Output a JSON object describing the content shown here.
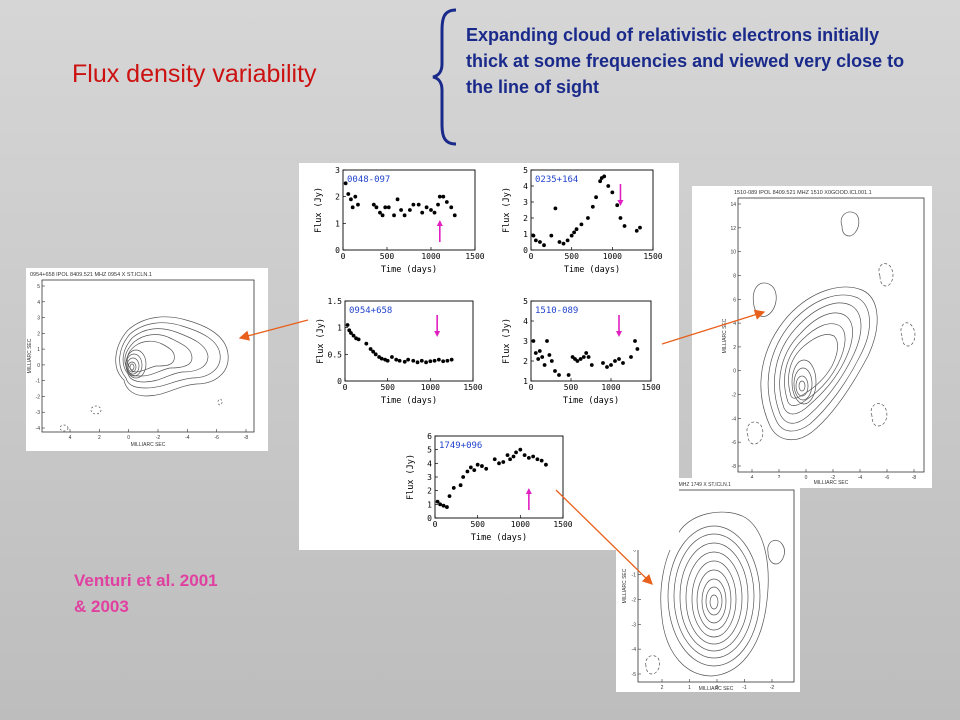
{
  "slide": {
    "title": "Flux density variability",
    "note": "Expanding cloud of relativistic electrons initially thick at some frequencies and viewed very close to the line of sight",
    "reference_line1": "Venturi et al. 2001",
    "reference_line2": "& 2003"
  },
  "colors": {
    "title": "#cc1111",
    "note": "#1a2a8a",
    "reference": "#e040a0",
    "arrow": "#e8601c",
    "marker": "#e020c0",
    "source_label": "#2244cc"
  },
  "maps": {
    "left": {
      "header": "0954+658 IPOL 8409.521 MHZ 0954 X ST.ICLN.1",
      "xlabel": "MILLIARC SEC",
      "ylabel": "MILLIARC SEC",
      "x_ticks": [
        "4",
        "2",
        "0",
        "-2",
        "-4",
        "-6",
        "-8"
      ],
      "y_ticks": [
        "5",
        "4",
        "3",
        "2",
        "1",
        "0",
        "-1",
        "-2",
        "-3",
        "-4"
      ]
    },
    "right": {
      "header": "1510-089 IPOL 8409.521 MHZ 1510 X0GOOD.ICL001.1",
      "xlabel": "MILLIARC SEC",
      "ylabel": "MILLIARC SEC",
      "x_ticks": [
        "4",
        "2",
        "0",
        "-2",
        "-4",
        "-6",
        "-8"
      ],
      "y_ticks": [
        "14",
        "12",
        "10",
        "8",
        "6",
        "4",
        "2",
        "0",
        "-2",
        "-4",
        "-6",
        "-8"
      ]
    },
    "bottom": {
      "header": "1749+096 IPOL 8409.521 MHZ 1749 X ST.ICLN.1",
      "xlabel": "MILLIARC SEC",
      "ylabel": "MILLIARC SEC",
      "x_ticks": [
        "2",
        "1",
        "0",
        "-1",
        "-2"
      ],
      "y_ticks": [
        "2",
        "1",
        "0",
        "-1",
        "-2",
        "-3",
        "-4",
        "-5"
      ]
    }
  },
  "chart_data": [
    {
      "type": "scatter",
      "source": "0048-097",
      "xlabel": "Time (days)",
      "ylabel": "Flux (Jy)",
      "xlim": [
        0,
        1500
      ],
      "ylim": [
        0,
        3
      ],
      "x_ticks": [
        0,
        500,
        1000,
        1500
      ],
      "y_ticks": [
        0,
        1,
        2,
        3
      ],
      "arrow_at_day": 1100,
      "points": [
        [
          30,
          2.5
        ],
        [
          60,
          2.1
        ],
        [
          90,
          1.9
        ],
        [
          110,
          1.6
        ],
        [
          140,
          2.0
        ],
        [
          170,
          1.7
        ],
        [
          350,
          1.7
        ],
        [
          380,
          1.6
        ],
        [
          420,
          1.4
        ],
        [
          450,
          1.3
        ],
        [
          480,
          1.6
        ],
        [
          520,
          1.6
        ],
        [
          580,
          1.3
        ],
        [
          620,
          1.9
        ],
        [
          660,
          1.5
        ],
        [
          700,
          1.3
        ],
        [
          760,
          1.5
        ],
        [
          800,
          1.7
        ],
        [
          860,
          1.7
        ],
        [
          900,
          1.4
        ],
        [
          950,
          1.6
        ],
        [
          1000,
          1.5
        ],
        [
          1040,
          1.4
        ],
        [
          1080,
          1.7
        ],
        [
          1100,
          2.0
        ],
        [
          1140,
          2.0
        ],
        [
          1180,
          1.8
        ],
        [
          1230,
          1.6
        ],
        [
          1270,
          1.3
        ]
      ]
    },
    {
      "type": "scatter",
      "source": "0235+164",
      "xlabel": "Time (days)",
      "ylabel": "Flux (Jy)",
      "xlim": [
        0,
        1500
      ],
      "ylim": [
        0,
        5
      ],
      "x_ticks": [
        0,
        500,
        1000,
        1500
      ],
      "y_ticks": [
        0,
        1,
        2,
        3,
        4,
        5
      ],
      "arrow_at_day": 1100,
      "points": [
        [
          30,
          0.9
        ],
        [
          60,
          0.6
        ],
        [
          110,
          0.5
        ],
        [
          160,
          0.3
        ],
        [
          250,
          0.9
        ],
        [
          300,
          2.6
        ],
        [
          350,
          0.5
        ],
        [
          400,
          0.4
        ],
        [
          450,
          0.6
        ],
        [
          500,
          0.9
        ],
        [
          530,
          1.1
        ],
        [
          560,
          1.3
        ],
        [
          620,
          1.6
        ],
        [
          700,
          2.0
        ],
        [
          760,
          2.7
        ],
        [
          800,
          3.3
        ],
        [
          850,
          4.3
        ],
        [
          870,
          4.5
        ],
        [
          900,
          4.6
        ],
        [
          950,
          4.0
        ],
        [
          1000,
          3.6
        ],
        [
          1060,
          2.8
        ],
        [
          1100,
          2.0
        ],
        [
          1150,
          1.5
        ],
        [
          1300,
          1.2
        ],
        [
          1340,
          1.4
        ]
      ]
    },
    {
      "type": "scatter",
      "source": "0954+658",
      "xlabel": "Time (days)",
      "ylabel": "Flux (Jy)",
      "xlim": [
        0,
        1500
      ],
      "ylim": [
        0,
        1.5
      ],
      "x_ticks": [
        0,
        500,
        1000,
        1500
      ],
      "y_ticks": [
        0,
        0.5,
        1,
        1.5
      ],
      "y_tick_labels": [
        "0",
        "0.5",
        "1",
        "1.5"
      ],
      "arrow_at_day": 1080,
      "points": [
        [
          30,
          1.05
        ],
        [
          50,
          0.95
        ],
        [
          70,
          0.9
        ],
        [
          100,
          0.85
        ],
        [
          130,
          0.8
        ],
        [
          160,
          0.78
        ],
        [
          250,
          0.7
        ],
        [
          300,
          0.6
        ],
        [
          330,
          0.55
        ],
        [
          360,
          0.5
        ],
        [
          400,
          0.45
        ],
        [
          430,
          0.42
        ],
        [
          470,
          0.4
        ],
        [
          500,
          0.38
        ],
        [
          550,
          0.45
        ],
        [
          600,
          0.4
        ],
        [
          640,
          0.38
        ],
        [
          700,
          0.36
        ],
        [
          740,
          0.4
        ],
        [
          800,
          0.38
        ],
        [
          850,
          0.35
        ],
        [
          900,
          0.38
        ],
        [
          950,
          0.35
        ],
        [
          1000,
          0.37
        ],
        [
          1050,
          0.38
        ],
        [
          1100,
          0.4
        ],
        [
          1150,
          0.37
        ],
        [
          1200,
          0.38
        ],
        [
          1250,
          0.4
        ]
      ]
    },
    {
      "type": "scatter",
      "source": "1510-089",
      "xlabel": "Time (days)",
      "ylabel": "Flux (Jy)",
      "xlim": [
        0,
        1500
      ],
      "ylim": [
        1,
        5
      ],
      "x_ticks": [
        0,
        500,
        1000,
        1500
      ],
      "y_ticks": [
        1,
        2,
        3,
        4,
        5
      ],
      "arrow_at_day": 1100,
      "points": [
        [
          30,
          3.0
        ],
        [
          60,
          2.4
        ],
        [
          90,
          2.1
        ],
        [
          110,
          2.5
        ],
        [
          140,
          2.2
        ],
        [
          170,
          1.8
        ],
        [
          200,
          3.0
        ],
        [
          230,
          2.3
        ],
        [
          260,
          2.0
        ],
        [
          300,
          1.5
        ],
        [
          350,
          1.3
        ],
        [
          470,
          1.3
        ],
        [
          520,
          2.2
        ],
        [
          550,
          2.1
        ],
        [
          580,
          2.0
        ],
        [
          620,
          2.1
        ],
        [
          660,
          2.2
        ],
        [
          690,
          2.4
        ],
        [
          720,
          2.2
        ],
        [
          760,
          1.8
        ],
        [
          900,
          1.9
        ],
        [
          950,
          1.7
        ],
        [
          1000,
          1.8
        ],
        [
          1050,
          2.0
        ],
        [
          1100,
          2.1
        ],
        [
          1150,
          1.9
        ],
        [
          1250,
          2.2
        ],
        [
          1300,
          3.0
        ],
        [
          1330,
          2.6
        ]
      ]
    },
    {
      "type": "scatter",
      "source": "1749+096",
      "xlabel": "Time (days)",
      "ylabel": "Flux (Jy)",
      "xlim": [
        0,
        1500
      ],
      "ylim": [
        0,
        6
      ],
      "x_ticks": [
        0,
        500,
        1000,
        1500
      ],
      "y_ticks": [
        0,
        1,
        2,
        3,
        4,
        5,
        6
      ],
      "arrow_at_day": 1100,
      "points": [
        [
          30,
          1.2
        ],
        [
          60,
          1.0
        ],
        [
          100,
          0.9
        ],
        [
          140,
          0.8
        ],
        [
          170,
          1.6
        ],
        [
          220,
          2.2
        ],
        [
          300,
          2.4
        ],
        [
          330,
          3.0
        ],
        [
          380,
          3.4
        ],
        [
          420,
          3.7
        ],
        [
          460,
          3.5
        ],
        [
          500,
          3.9
        ],
        [
          550,
          3.8
        ],
        [
          600,
          3.6
        ],
        [
          700,
          4.3
        ],
        [
          750,
          4.0
        ],
        [
          800,
          4.1
        ],
        [
          850,
          4.6
        ],
        [
          880,
          4.3
        ],
        [
          920,
          4.5
        ],
        [
          950,
          4.8
        ],
        [
          1000,
          5.0
        ],
        [
          1050,
          4.6
        ],
        [
          1100,
          4.4
        ],
        [
          1150,
          4.5
        ],
        [
          1200,
          4.3
        ],
        [
          1250,
          4.2
        ],
        [
          1300,
          3.9
        ]
      ]
    }
  ]
}
